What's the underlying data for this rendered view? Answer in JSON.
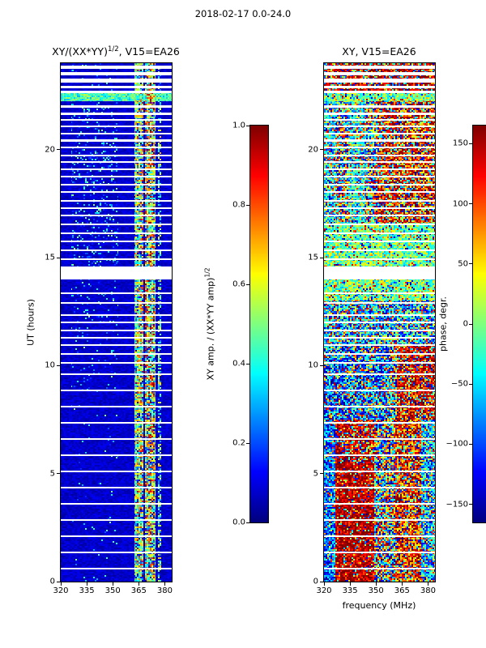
{
  "figure": {
    "title": "2018-02-17 0.0-24.0",
    "background": "#ffffff"
  },
  "left_panel": {
    "title_base": "XY/(XX*YY)",
    "title_sup": "1/2",
    "title_rest": ", V15=EA26",
    "ylabel": "UT (hours)",
    "colorbar_label_base": "XY amp. / (XX*YY amp)",
    "colorbar_label_sup": "1/2"
  },
  "right_panel": {
    "title": "XY, V15=EA26",
    "xlabel": "frequency (MHz)",
    "colorbar_label": "phase, degr."
  },
  "shared": {
    "missing_time_ranges_hours": [
      [
        23.75,
        23.9
      ],
      [
        23.45,
        23.6
      ],
      [
        23.1,
        23.28
      ],
      [
        22.85,
        22.95
      ],
      [
        22.62,
        22.72
      ],
      [
        21.95,
        22.05
      ],
      [
        21.6,
        21.7
      ],
      [
        21.32,
        21.4
      ],
      [
        21.05,
        21.12
      ],
      [
        20.7,
        20.78
      ],
      [
        20.38,
        20.46
      ],
      [
        20.05,
        20.12
      ],
      [
        19.7,
        19.78
      ],
      [
        19.38,
        19.45
      ],
      [
        19.05,
        19.12
      ],
      [
        18.7,
        18.78
      ],
      [
        18.35,
        18.42
      ],
      [
        18.0,
        18.07
      ],
      [
        17.6,
        17.68
      ],
      [
        17.25,
        17.32
      ],
      [
        16.9,
        16.97
      ],
      [
        16.5,
        16.58
      ],
      [
        16.1,
        16.17
      ],
      [
        15.7,
        15.77
      ],
      [
        15.3,
        15.37
      ],
      [
        14.9,
        14.97
      ],
      [
        14.0,
        14.6
      ],
      [
        13.3,
        13.4
      ],
      [
        12.85,
        12.93
      ],
      [
        12.3,
        12.38
      ],
      [
        11.95,
        12.02
      ],
      [
        11.6,
        11.68
      ],
      [
        11.25,
        11.32
      ],
      [
        10.9,
        10.97
      ],
      [
        10.5,
        10.57
      ],
      [
        10.1,
        10.17
      ],
      [
        9.55,
        9.62
      ],
      [
        8.8,
        8.87
      ],
      [
        8.05,
        8.12
      ],
      [
        7.3,
        7.37
      ],
      [
        6.55,
        6.62
      ],
      [
        5.8,
        5.87
      ],
      [
        5.05,
        5.12
      ],
      [
        4.3,
        4.37
      ],
      [
        3.55,
        3.62
      ],
      [
        2.8,
        2.87
      ],
      [
        2.05,
        2.12
      ],
      [
        1.3,
        1.37
      ],
      [
        0.55,
        0.62
      ]
    ]
  },
  "chart_data": [
    {
      "type": "heatmap",
      "title": "XY/(XX*YY)^(1/2), V15=EA26",
      "xlabel": "frequency (MHz)",
      "ylabel": "UT (hours)",
      "xlim": [
        320,
        384
      ],
      "ylim": [
        0,
        24
      ],
      "xticks": [
        320,
        335,
        350,
        365,
        380
      ],
      "xtick_labels": [
        "320",
        "335",
        "350",
        "365",
        "380"
      ],
      "yticks": [
        0,
        5,
        10,
        15,
        20
      ],
      "ytick_labels": [
        "0",
        "5",
        "10",
        "15",
        "20"
      ],
      "colormap": "jet",
      "grid": false,
      "colorbar": {
        "label": "XY amp. / (XX*YY amp)^(1/2)",
        "range": [
          0.0,
          1.0
        ],
        "tick_values": [
          1.0,
          0.8,
          0.6,
          0.4,
          0.2,
          0.0
        ],
        "tick_labels": [
          "1.0",
          "0.8",
          "0.6",
          "0.4",
          "0.2",
          "0.0"
        ]
      },
      "features": [
        "low baseline amplitude ~0.03-0.12 (dark blue) across most frequencies",
        "high-amplitude speckled band (0.3-1.0) near 362-375 MHz at all times, split by a dark notch near 368 MHz",
        "weak narrow feature near 376-378 MHz",
        "scattered cyan speckle at 327-353 MHz, mostly 9-22 h, densest 14.5-22 h",
        "bright cyan band (~0.3-0.6) across all frequencies near 22.3-22.6 h",
        "white horizontal rows are missing scans; thick gap near 14.0-14.6 h"
      ]
    },
    {
      "type": "heatmap",
      "title": "XY, V15=EA26",
      "xlabel": "frequency (MHz)",
      "ylabel": "UT (hours)",
      "xlim": [
        320,
        384
      ],
      "ylim": [
        0,
        24
      ],
      "xticks": [
        320,
        335,
        350,
        365,
        380
      ],
      "xtick_labels": [
        "320",
        "335",
        "350",
        "365",
        "380"
      ],
      "yticks": [
        0,
        5,
        10,
        15,
        20
      ],
      "ytick_labels": [
        "0",
        "5",
        "10",
        "15",
        "20"
      ],
      "colormap": "jet",
      "grid": false,
      "colorbar": {
        "label": "phase, degr.",
        "range": [
          -165,
          165
        ],
        "tick_values": [
          150,
          100,
          50,
          0,
          -50,
          -100,
          -150
        ],
        "tick_labels": [
          "150",
          "100",
          "50",
          "0",
          "−50",
          "−100",
          "−150"
        ]
      },
      "features": [
        "noisy phase speckle spanning roughly -165 to +165 degrees",
        "0-7.5 h: phase ~ -90 below 327 MHz (blue), ~ +150 at 327-349 MHz (red), mixed 349-361 MHz, ~ +120 at 362-376 MHz (orange/red), ~ -60 above 376 MHz (cyan)",
        "7.5-11 h: blue-dominant (~ -95) below 358 MHz, red (~ +140) above 362 MHz",
        "13-16.6 h: green/cyan rows (~ -5) across the whole band",
        "16.6-22.25 h: mixed speckle with cyan streaks near 320-327 and 334-344 MHz and red patches above 351 MHz",
        "22.25-22.6 h: green/cyan band across all frequencies",
        "22.7-24 h: red-dominant rows (~ +155)",
        "same white missing-scan rows as the left panel"
      ]
    }
  ]
}
